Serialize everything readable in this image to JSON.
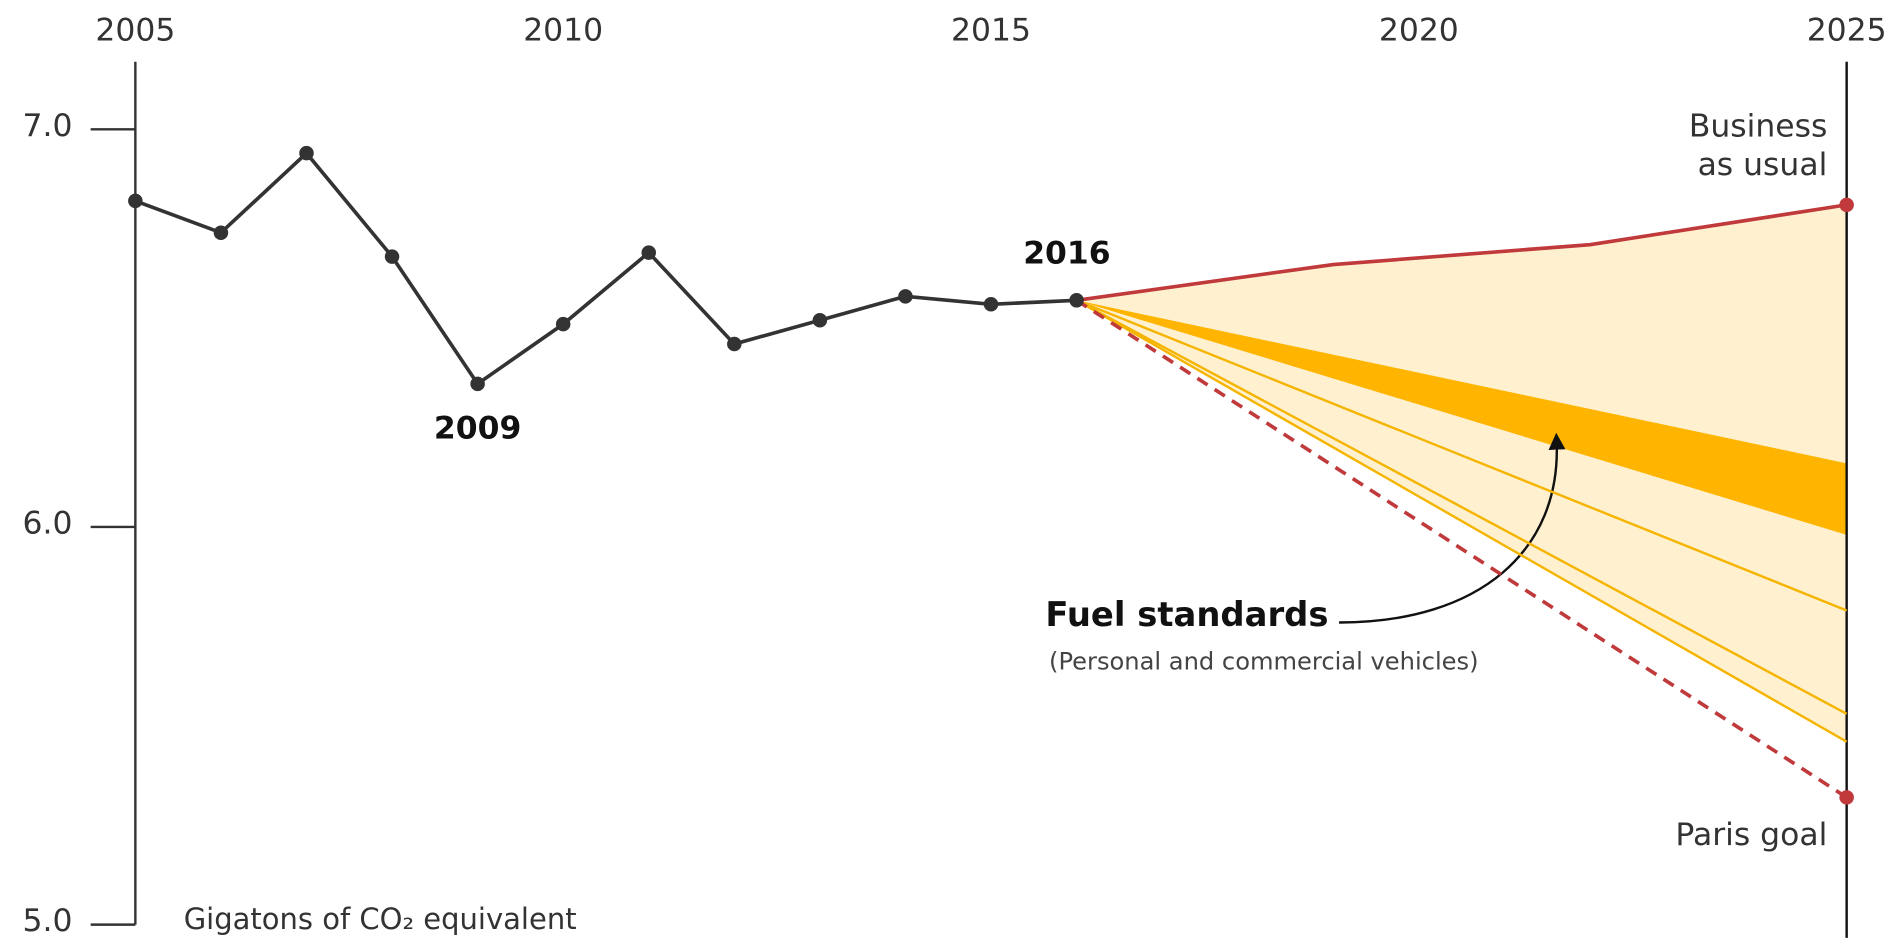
{
  "chart_data": {
    "type": "line",
    "xlim": [
      2005,
      2025
    ],
    "xticks": [
      2005,
      2010,
      2015,
      2020,
      2025
    ],
    "ylim": [
      5.0,
      7.17
    ],
    "yticks": [
      {
        "value": 7,
        "label": "7.0"
      },
      {
        "value": 6,
        "label": "6.0"
      },
      {
        "value": 5,
        "label": "5.0"
      }
    ],
    "y_axis_label": "Gigatons of CO₂ equivalent",
    "series": [
      {
        "color": "#333333",
        "markers": true,
        "highlight": [
          4,
          11
        ],
        "x": [
          2005,
          2006,
          2007,
          2008,
          2009,
          2010,
          2011,
          2012,
          2013,
          2014,
          2015,
          2016
        ],
        "values": [
          6.82,
          6.74,
          6.94,
          6.68,
          6.36,
          6.51,
          6.69,
          6.46,
          6.52,
          6.58,
          6.56,
          6.57
        ]
      },
      {
        "name_lines": [
          "Business",
          "as usual"
        ],
        "color": "#c0393b",
        "end_marker": true,
        "x": [
          2016,
          2019,
          2022,
          2025
        ],
        "values": [
          6.57,
          6.66,
          6.71,
          6.81
        ]
      },
      {
        "name": "Paris goal",
        "color": "#c0393b",
        "dashed": true,
        "end_marker": true,
        "x": [
          2016,
          2025
        ],
        "values": [
          6.57,
          5.32
        ]
      },
      {
        "color": "#f5b400",
        "x": [
          2016,
          2025
        ],
        "values": [
          6.57,
          5.79
        ]
      },
      {
        "color": "#f5b400",
        "x": [
          2016,
          2025
        ],
        "values": [
          6.57,
          5.53
        ]
      },
      {
        "color": "#f5b400",
        "x": [
          2016,
          2025
        ],
        "values": [
          6.57,
          5.46
        ]
      }
    ],
    "band": {
      "name": "Fuel standards",
      "note": "(Personal and commercial vehicles)",
      "color": "#ffb400",
      "x": [
        2016,
        2025
      ],
      "upper": [
        6.57,
        6.16
      ],
      "lower": [
        6.57,
        5.98
      ]
    },
    "range_fill": "#fff1cf"
  }
}
